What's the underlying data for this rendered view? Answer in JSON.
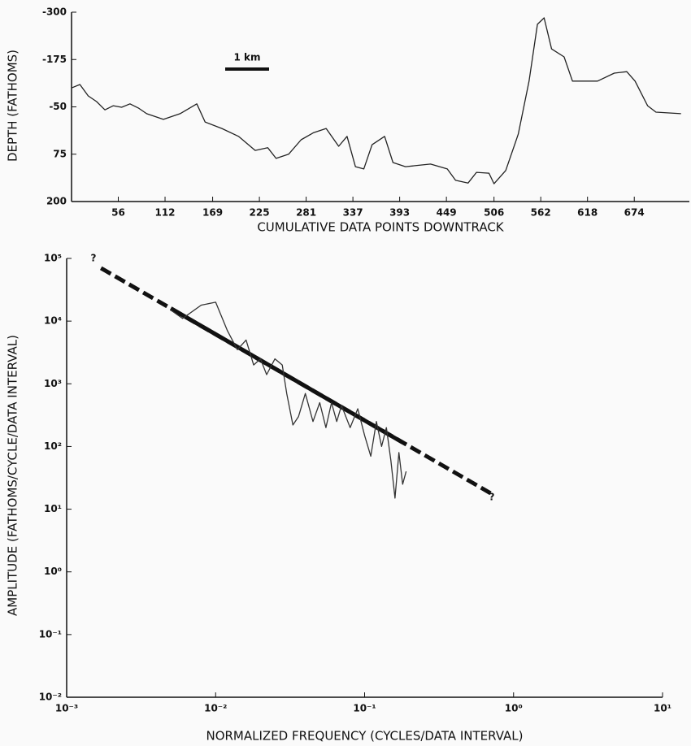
{
  "chart_data": [
    {
      "type": "line",
      "ylabel": "DEPTH (FATHOMS)",
      "xlabel": "CUMULATIVE DATA POINTS DOWNTRACK",
      "annotations": [
        "1 km"
      ],
      "xlim": [
        0,
        740
      ],
      "xticks": [
        56,
        112,
        169,
        225,
        281,
        337,
        393,
        449,
        506,
        562,
        618,
        674
      ],
      "ylim": [
        200,
        -300
      ],
      "yticks": [
        -300,
        -175,
        -50,
        75,
        200
      ],
      "series": [
        {
          "color": "#222222",
          "style": "thin",
          "x": [
            0,
            10,
            20,
            30,
            40,
            50,
            60,
            70,
            80,
            90,
            110,
            130,
            150,
            160,
            180,
            200,
            220,
            235,
            245,
            260,
            275,
            290,
            305,
            320,
            330,
            340,
            350,
            360,
            375,
            385,
            400,
            430,
            450,
            460,
            475,
            485,
            500,
            506,
            520,
            535,
            548,
            558,
            566,
            575,
            590,
            600,
            630,
            650,
            665,
            675,
            690,
            700,
            730
          ],
          "values": [
            -100,
            -109,
            -79,
            -64,
            -42,
            -53,
            -49,
            -58,
            -47,
            -32,
            -17,
            -32,
            -58,
            -10,
            7,
            28,
            65,
            58,
            86,
            75,
            37,
            18,
            7,
            54,
            28,
            108,
            114,
            50,
            28,
            97,
            108,
            101,
            114,
            144,
            151,
            123,
            125,
            153,
            118,
            22,
            -118,
            -268,
            -285,
            -203,
            -182,
            -118,
            -118,
            -139,
            -143,
            -118,
            -53,
            -36,
            -32
          ]
        }
      ]
    },
    {
      "type": "line",
      "log_x": true,
      "log_y": true,
      "ylabel": "AMPLITUDE (FATHOMS/CYCLE/DATA INTERVAL)",
      "xlabel": "NORMALIZED FREQUENCY (CYCLES/DATA INTERVAL)",
      "annotations": [
        "?",
        "?"
      ],
      "xlim": [
        0.001,
        10
      ],
      "xticks": [
        {
          "value": 0.001,
          "label": "10⁻³"
        },
        {
          "value": 0.01,
          "label": "10⁻²"
        },
        {
          "value": 0.1,
          "label": "10⁻¹"
        },
        {
          "value": 1,
          "label": "10⁰"
        },
        {
          "value": 10,
          "label": "10¹"
        }
      ],
      "ylim": [
        0.01,
        100000
      ],
      "yticks": [
        {
          "value": 0.01,
          "label": "10⁻²"
        },
        {
          "value": 0.1,
          "label": "10⁻¹"
        },
        {
          "value": 1,
          "label": "10⁰"
        },
        {
          "value": 10,
          "label": "10¹"
        },
        {
          "value": 100,
          "label": "10²"
        },
        {
          "value": 1000,
          "label": "10³"
        },
        {
          "value": 10000,
          "label": "10⁴"
        },
        {
          "value": 100000,
          "label": "10⁵"
        }
      ],
      "series": [
        {
          "color": "#111111",
          "style": "dashed",
          "x": [
            0.0017,
            0.7
          ],
          "values": [
            70000,
            18
          ]
        },
        {
          "color": "#111111",
          "style": "thick",
          "x": [
            0.005,
            0.18
          ],
          "values": [
            16000,
            116
          ]
        },
        {
          "color": "#333333",
          "style": "thin",
          "x": [
            0.005,
            0.006,
            0.008,
            0.01,
            0.012,
            0.014,
            0.016,
            0.018,
            0.02,
            0.022,
            0.025,
            0.028,
            0.03,
            0.033,
            0.036,
            0.04,
            0.045,
            0.05,
            0.055,
            0.06,
            0.065,
            0.07,
            0.08,
            0.09,
            0.1,
            0.11,
            0.12,
            0.13,
            0.14,
            0.15,
            0.16,
            0.17,
            0.18,
            0.19
          ],
          "values": [
            15000,
            11000,
            18000,
            20000,
            7000,
            3500,
            5000,
            2000,
            2500,
            1400,
            2500,
            2000,
            700,
            220,
            300,
            700,
            250,
            500,
            200,
            500,
            250,
            450,
            200,
            400,
            150,
            70,
            250,
            100,
            200,
            60,
            15,
            80,
            25,
            40
          ]
        }
      ]
    }
  ]
}
